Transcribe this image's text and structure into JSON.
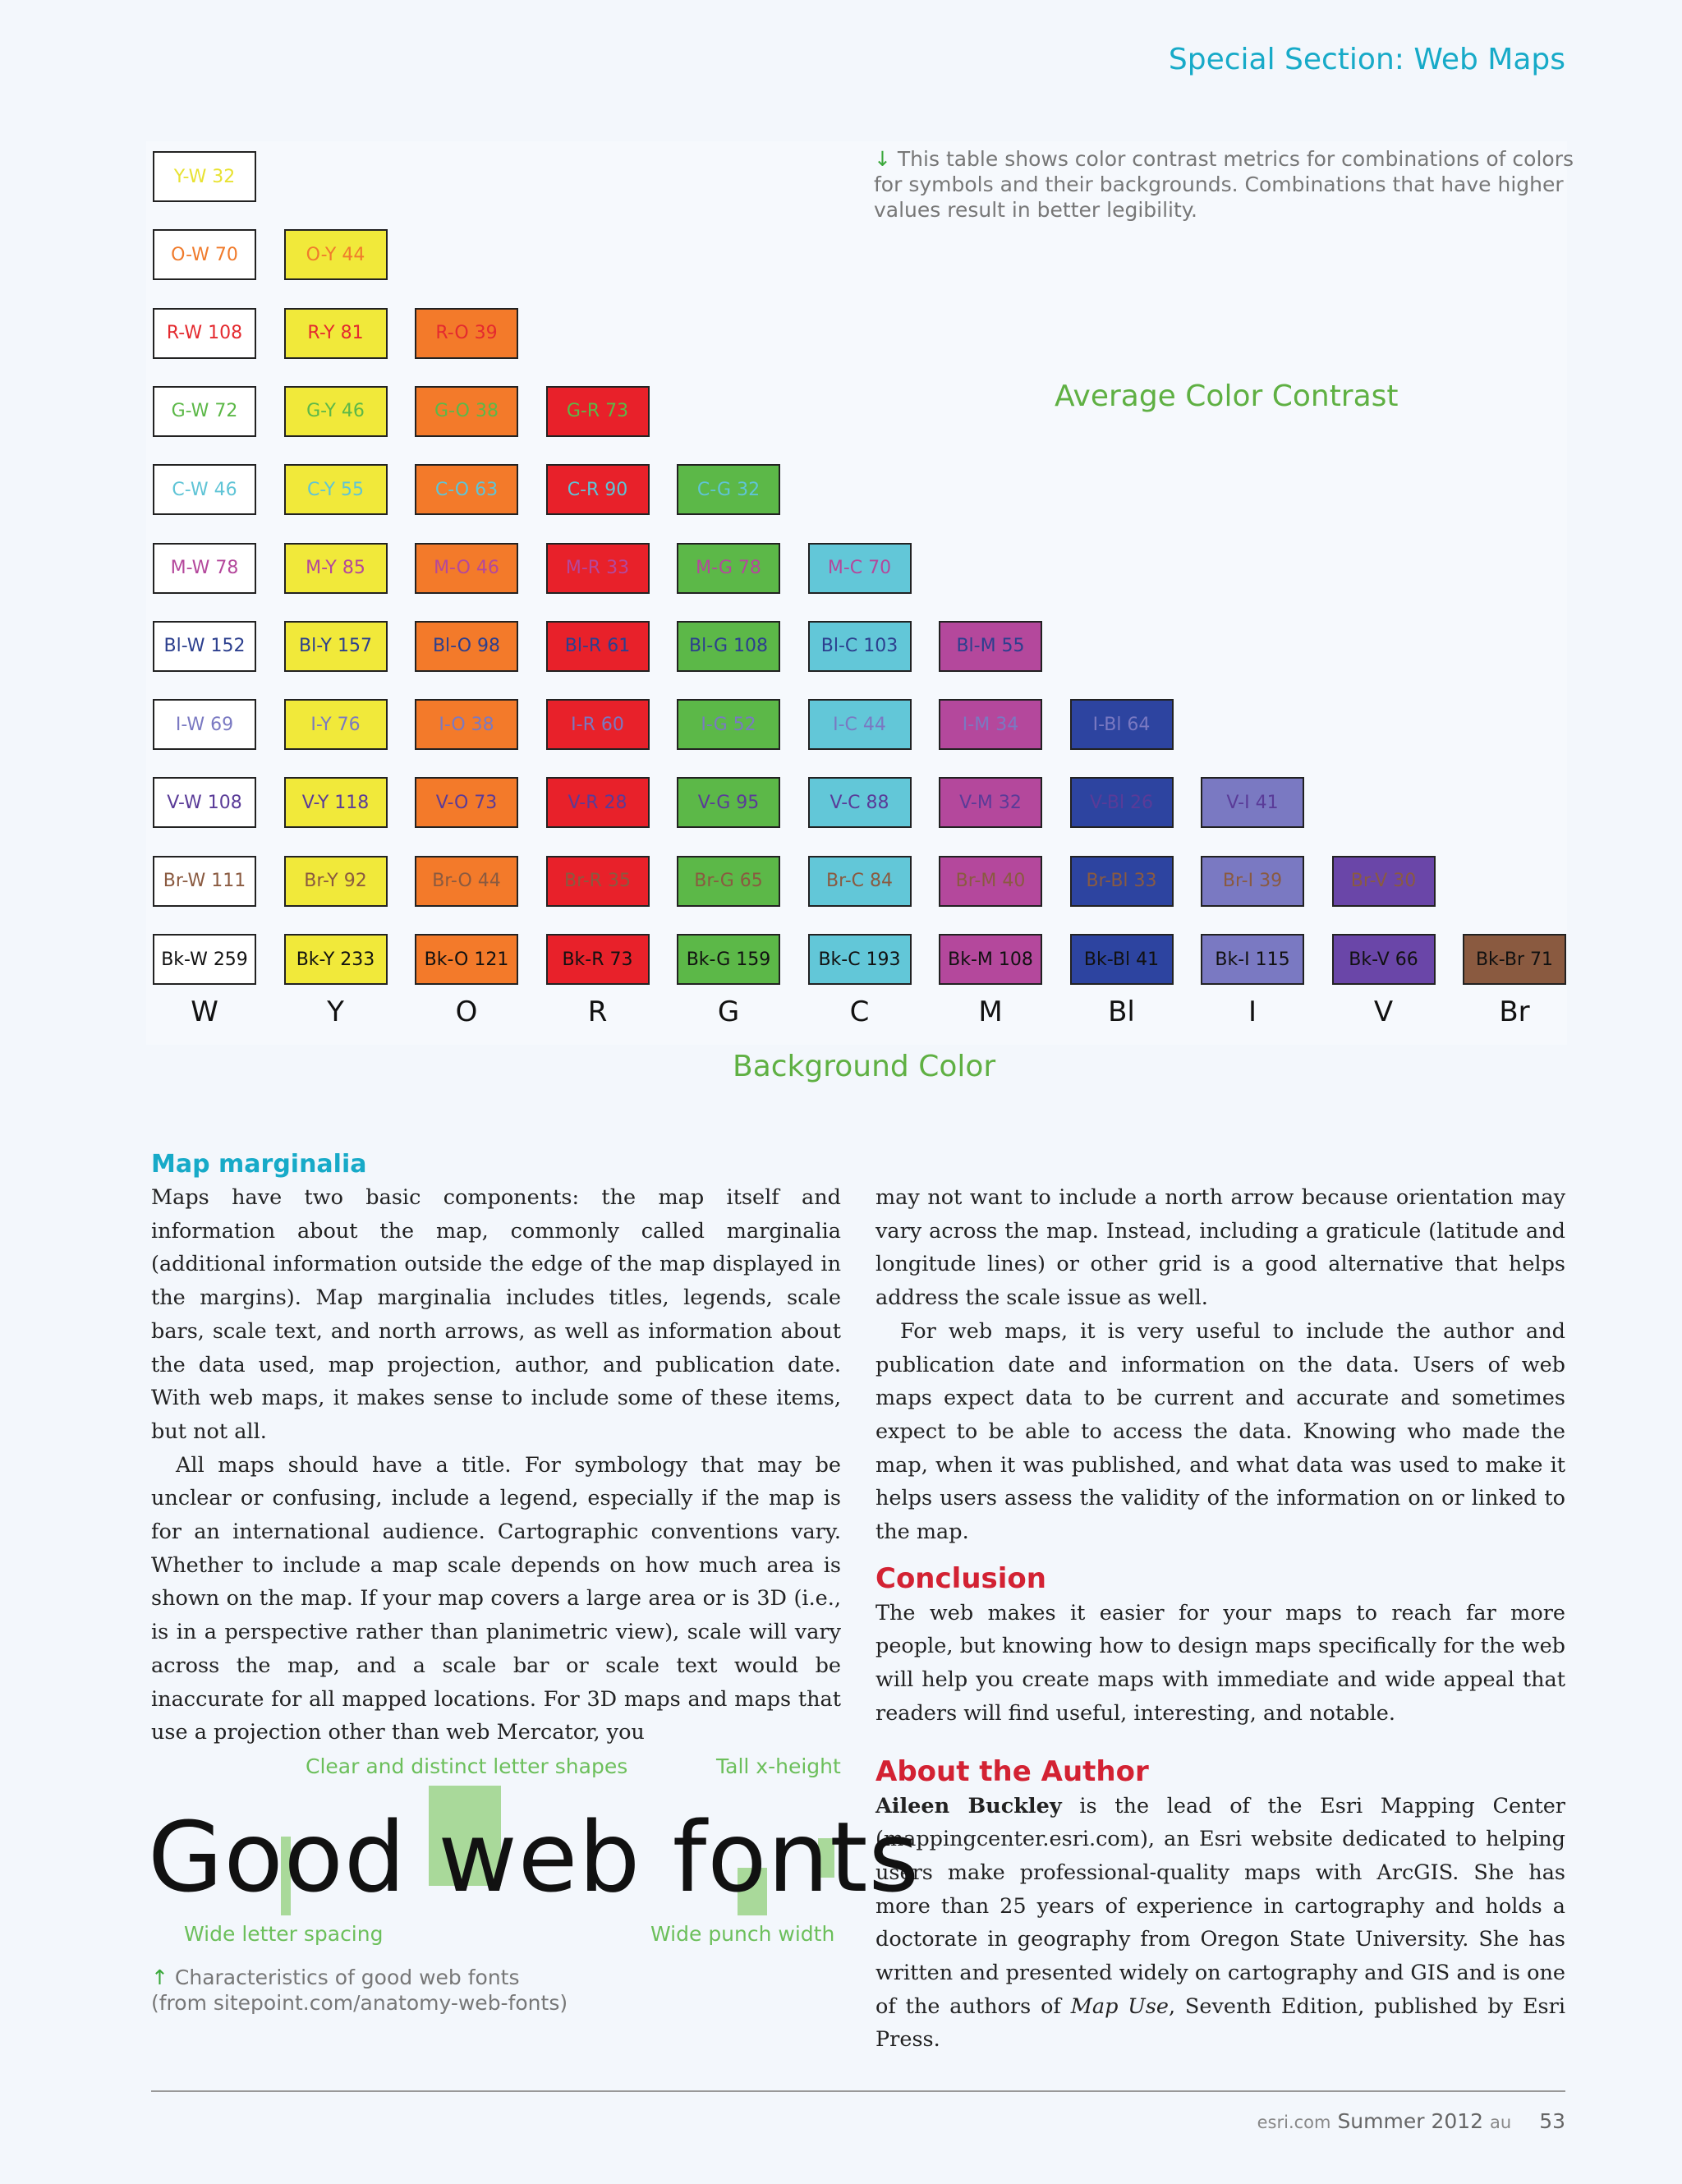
{
  "header": {
    "section": "Special Section: Web Maps"
  },
  "chart_caption": {
    "arrow": "↓",
    "text": "This table shows color contrast metrics for combinations of colors for symbols and their backgrounds. Combinations that have higher values result in better legibility."
  },
  "chart_data": {
    "type": "table",
    "title": "Average Color Contrast",
    "xlabel": "Background Color",
    "columns": [
      "W",
      "Y",
      "O",
      "R",
      "G",
      "C",
      "M",
      "Bl",
      "I",
      "V",
      "Br"
    ],
    "background_colors": {
      "W": "#ffffff",
      "Y": "#f1e93a",
      "O": "#f37a2a",
      "R": "#e8212a",
      "G": "#5cb848",
      "C": "#62c7d8",
      "M": "#b4489c",
      "Bl": "#2d44a0",
      "I": "#7a79c2",
      "V": "#6a46a8",
      "Br": "#8a5a40"
    },
    "text_colors": {
      "Y": "#e8e232",
      "O": "#f07b2c",
      "R": "#e42a2f",
      "G": "#5cb848",
      "C": "#5fc4d6",
      "M": "#b4489c",
      "Bl": "#2c3f8e",
      "I": "#7a79c2",
      "V": "#5a3b98",
      "Br": "#8a5a40",
      "Bk": "#111111"
    },
    "rows": [
      {
        "symbol": "Y",
        "cells": [
          {
            "label": "Y-W",
            "value": "32"
          }
        ]
      },
      {
        "symbol": "O",
        "cells": [
          {
            "label": "O-W",
            "value": "70"
          },
          {
            "label": "O-Y",
            "value": "44"
          }
        ]
      },
      {
        "symbol": "R",
        "cells": [
          {
            "label": "R-W",
            "value": "108"
          },
          {
            "label": "R-Y",
            "value": "81"
          },
          {
            "label": "R-O",
            "value": "39"
          }
        ]
      },
      {
        "symbol": "G",
        "cells": [
          {
            "label": "G-W",
            "value": "72"
          },
          {
            "label": "G-Y",
            "value": "46"
          },
          {
            "label": "G-O",
            "value": "38"
          },
          {
            "label": "G-R",
            "value": "73"
          }
        ]
      },
      {
        "symbol": "C",
        "cells": [
          {
            "label": "C-W",
            "value": "46"
          },
          {
            "label": "C-Y",
            "value": "55"
          },
          {
            "label": "C-O",
            "value": "63"
          },
          {
            "label": "C-R",
            "value": "90"
          },
          {
            "label": "C-G",
            "value": "32"
          }
        ]
      },
      {
        "symbol": "M",
        "cells": [
          {
            "label": "M-W",
            "value": "78"
          },
          {
            "label": "M-Y",
            "value": "85"
          },
          {
            "label": "M-O",
            "value": "46"
          },
          {
            "label": "M-R",
            "value": "33"
          },
          {
            "label": "M-G",
            "value": "78"
          },
          {
            "label": "M-C",
            "value": "70"
          }
        ]
      },
      {
        "symbol": "Bl",
        "cells": [
          {
            "label": "Bl-W",
            "value": "152"
          },
          {
            "label": "Bl-Y",
            "value": "157"
          },
          {
            "label": "Bl-O",
            "value": "98"
          },
          {
            "label": "Bl-R",
            "value": "61"
          },
          {
            "label": "Bl-G",
            "value": "108"
          },
          {
            "label": "Bl-C",
            "value": "103"
          },
          {
            "label": "Bl-M",
            "value": "55"
          }
        ]
      },
      {
        "symbol": "I",
        "cells": [
          {
            "label": "I-W",
            "value": "69"
          },
          {
            "label": "I-Y",
            "value": "76"
          },
          {
            "label": "I-O",
            "value": "38"
          },
          {
            "label": "I-R",
            "value": "60"
          },
          {
            "label": "I-G",
            "value": "52"
          },
          {
            "label": "I-C",
            "value": "44"
          },
          {
            "label": "I-M",
            "value": "34"
          },
          {
            "label": "I-Bl",
            "value": "64"
          }
        ]
      },
      {
        "symbol": "V",
        "cells": [
          {
            "label": "V-W",
            "value": "108"
          },
          {
            "label": "V-Y",
            "value": "118"
          },
          {
            "label": "V-O",
            "value": "73"
          },
          {
            "label": "V-R",
            "value": "28"
          },
          {
            "label": "V-G",
            "value": "95"
          },
          {
            "label": "V-C",
            "value": "88"
          },
          {
            "label": "V-M",
            "value": "32"
          },
          {
            "label": "V-Bl",
            "value": "26"
          },
          {
            "label": "V-I",
            "value": "41"
          }
        ]
      },
      {
        "symbol": "Br",
        "cells": [
          {
            "label": "Br-W",
            "value": "111"
          },
          {
            "label": "Br-Y",
            "value": "92"
          },
          {
            "label": "Br-O",
            "value": "44"
          },
          {
            "label": "Br-R",
            "value": "35"
          },
          {
            "label": "Br-G",
            "value": "65"
          },
          {
            "label": "Br-C",
            "value": "84"
          },
          {
            "label": "Br-M",
            "value": "40"
          },
          {
            "label": "Br-Bl",
            "value": "33"
          },
          {
            "label": "Br-I",
            "value": "39"
          },
          {
            "label": "Br-V",
            "value": "30"
          }
        ]
      },
      {
        "symbol": "Bk",
        "cells": [
          {
            "label": "Bk-W",
            "value": "259"
          },
          {
            "label": "Bk-Y",
            "value": "233"
          },
          {
            "label": "Bk-O",
            "value": "121"
          },
          {
            "label": "Bk-R",
            "value": "73"
          },
          {
            "label": "Bk-G",
            "value": "159"
          },
          {
            "label": "Bk-C",
            "value": "193"
          },
          {
            "label": "Bk-M",
            "value": "108"
          },
          {
            "label": "Bk-Bl",
            "value": "41"
          },
          {
            "label": "Bk-I",
            "value": "115"
          },
          {
            "label": "Bk-V",
            "value": "66"
          },
          {
            "label": "Bk-Br",
            "value": "71"
          }
        ]
      }
    ]
  },
  "article": {
    "marginalia_heading": "Map marginalia",
    "p1": "Maps have two basic components: the map itself and information about the map, commonly called marginalia (additional information outside the edge of the map displayed in the margins). Map marginalia includes titles, legends, scale bars, scale text, and north arrows, as well as information about the data used, map projection, author, and publication date. With web maps, it makes sense to include some of these items, but not all.",
    "p2": "All maps should have a title. For symbology that may be unclear or confusing, include a legend, especially if the map is for an international audience. Cartographic conventions vary. Whether to include a map scale depends on how much area is shown on the map. If your map covers a large area or is 3D (i.e., is in a perspective rather than planimetric view), scale will vary across the map, and a scale bar or scale text would be inaccurate for all mapped locations. For 3D maps and maps that use a projection other than web Mercator, you",
    "p3": "may not want to include a north arrow because orientation may vary across the map. Instead, including a graticule (latitude and longitude lines) or other grid is a good alternative that helps address the scale issue as well.",
    "p4": "For web maps, it is very useful to include the author and publication date and information on the data. Users of web maps expect data to be current and accurate and sometimes expect to be able to access the data. Knowing who made the map, when it was published, and what data was used to make it helps users assess the validity of the information on or linked to the map.",
    "conclusion_heading": "Conclusion",
    "p5": "The web makes it easier for your maps to reach far more people, but knowing how to design maps specifically for the web will help you create maps with immediate and wide appeal that readers will find useful, interesting, and notable.",
    "author_heading": "About the Author",
    "author_name": "Aileen Buckley",
    "author_bio": " is the lead of the Esri Mapping Center (mappingcenter.esri.com), an Esri website dedicated to helping users make professional-quality maps with ArcGIS. She has more than 25 years of experience in cartography and holds a doctorate in geography from Oregon State University. She has written and presented widely on cartography and GIS and is one of the authors of ",
    "book_title": "Map Use",
    "author_bio_end": ", Seventh Edition, published by Esri Press."
  },
  "font_figure": {
    "label_shapes": "Clear and distinct letter shapes",
    "label_xheight": "Tall x-height",
    "demo_text": "Good web fonts",
    "label_spacing": "Wide letter spacing",
    "label_punch": "Wide punch width",
    "caption_arrow": "↑",
    "caption_line1": "Characteristics of good web fonts",
    "caption_line2": "(from sitepoint.com/anatomy-web-fonts)"
  },
  "footer": {
    "site": "esri.com",
    "issue": "Summer 2012",
    "edition": "au",
    "page": "53"
  }
}
